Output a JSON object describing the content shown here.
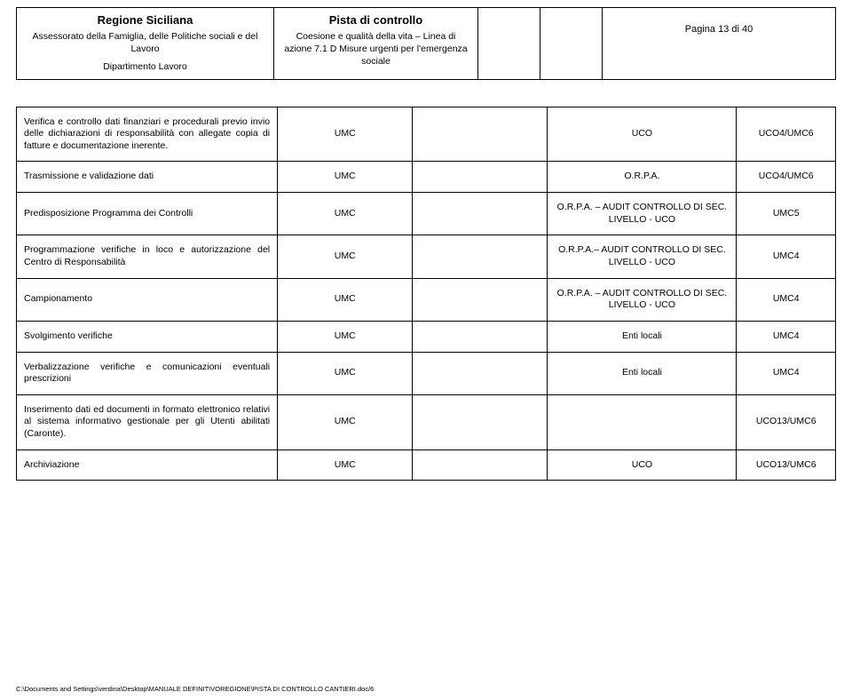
{
  "header": {
    "col1": {
      "title": "Regione Siciliana",
      "line1": "Assessorato della Famiglia, delle Politiche sociali e del Lavoro",
      "line2": "Dipartimento Lavoro"
    },
    "col2": {
      "title": "Pista di controllo",
      "line1": "Coesione e qualità della vita – Linea di azione 7.1 D Misure urgenti per l'emergenza sociale"
    },
    "col5": {
      "page": "Pagina 13 di 40"
    }
  },
  "rows": [
    {
      "c1": "Verifica e controllo dati finanziari e procedurali previo invio delle dichiarazioni di responsabilità con allegate copia di fatture e documentazione inerente.",
      "c2": "UMC",
      "c3": "",
      "c4": "UCO",
      "c5": "UCO4/UMC6",
      "c1just": true
    },
    {
      "c1": "Trasmissione e validazione dati",
      "c2": "UMC",
      "c3": "",
      "c4": "O.R.P.A.",
      "c5": "UCO4/UMC6"
    },
    {
      "c1": "Predisposizione Programma dei Controlli",
      "c2": "UMC",
      "c3": "",
      "c4": "O.R.P.A. – AUDIT CONTROLLO DI SEC. LIVELLO - UCO",
      "c5": "UMC5"
    },
    {
      "c1": "Programmazione verifiche in loco e autorizzazione del Centro di Responsabilità",
      "c2": "UMC",
      "c3": "",
      "c4": "O.R.P.A.– AUDIT CONTROLLO DI SEC. LIVELLO - UCO",
      "c5": "UMC4",
      "c1just": true
    },
    {
      "c1": "Campionamento",
      "c2": "UMC",
      "c3": "",
      "c4": "O.R.P.A. – AUDIT CONTROLLO DI SEC. LIVELLO - UCO",
      "c5": "UMC4"
    },
    {
      "c1": "Svolgimento verifiche",
      "c2": "UMC",
      "c3": "",
      "c4": "Enti locali",
      "c5": "UMC4"
    },
    {
      "c1": "Verbalizzazione verifiche e comunicazioni eventuali prescrizioni",
      "c2": "UMC",
      "c3": "",
      "c4": "Enti locali",
      "c5": "UMC4",
      "c1just": true
    },
    {
      "c1": "Inserimento dati ed documenti in formato elettronico relativi al sistema informativo gestionale per gli Utenti abilitati (Caronte).",
      "c2": "UMC",
      "c3": "",
      "c4": "",
      "c5": "UCO13/UMC6",
      "c1just": true
    },
    {
      "c1": "Archiviazione",
      "c2": "UMC",
      "c3": "",
      "c4": "UCO",
      "c5": "UCO13/UMC6"
    }
  ],
  "footer": "C:\\Documents and Settings\\verdina\\Desktop\\MANUALE DEFINITIVOREGIONE\\PISTA DI CONTROLLO CANTIERI.doc/6"
}
